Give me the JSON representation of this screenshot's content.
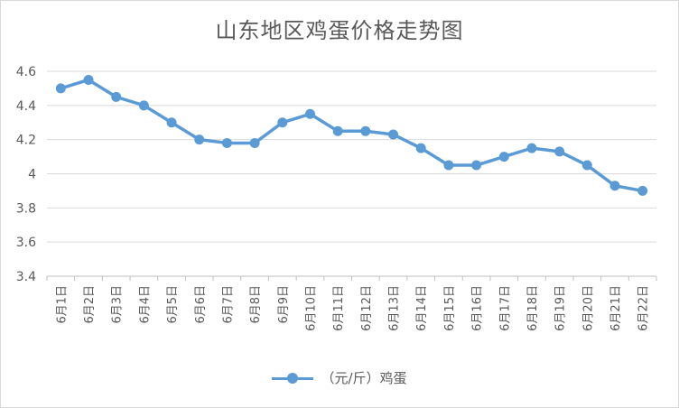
{
  "chart_data": {
    "type": "line",
    "title": "山东地区鸡蛋价格走势图",
    "categories": [
      "6月1日",
      "6月2日",
      "6月3日",
      "6月4日",
      "6月5日",
      "6月6日",
      "6月7日",
      "6月8日",
      "6月9日",
      "6月10日",
      "6月11日",
      "6月12日",
      "6月13日",
      "6月14日",
      "6月15日",
      "6月16日",
      "6月17日",
      "6月18日",
      "6月19日",
      "6月20日",
      "6月21日",
      "6月22日"
    ],
    "series": [
      {
        "name": "（元/斤）鸡蛋",
        "values": [
          4.5,
          4.55,
          4.45,
          4.4,
          4.3,
          4.2,
          4.18,
          4.18,
          4.3,
          4.35,
          4.25,
          4.25,
          4.23,
          4.15,
          4.05,
          4.05,
          4.1,
          4.15,
          4.13,
          4.05,
          3.93,
          3.9
        ]
      }
    ],
    "ylim": [
      3.4,
      4.6
    ],
    "yticks": [
      "3.4",
      "3.6",
      "3.8",
      "4",
      "4.2",
      "4.4",
      "4.6"
    ],
    "grid": true,
    "legend_position": "bottom",
    "line_color": "#5b9bd5"
  }
}
